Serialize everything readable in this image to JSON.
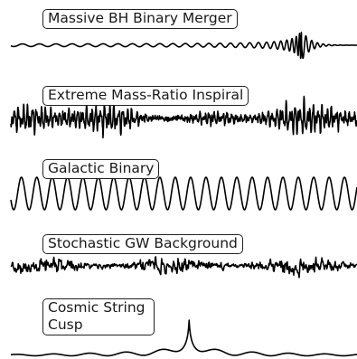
{
  "panels": [
    {
      "id": "mbhb",
      "label": "Massive BH Binary Merger",
      "kind": "chirp"
    },
    {
      "id": "emri",
      "label": "Extreme Mass-Ratio Inspiral",
      "kind": "noisy"
    },
    {
      "id": "gb",
      "label": "Galactic Binary",
      "kind": "sine"
    },
    {
      "id": "sgwb",
      "label": "Stochastic GW Background",
      "kind": "stochastic"
    },
    {
      "id": "cusp",
      "label": "Cosmic String\nCusp",
      "kind": "cusp"
    }
  ],
  "colors": {
    "line": "#000000",
    "box_border": "#222222",
    "text": "#1a1a1a"
  }
}
